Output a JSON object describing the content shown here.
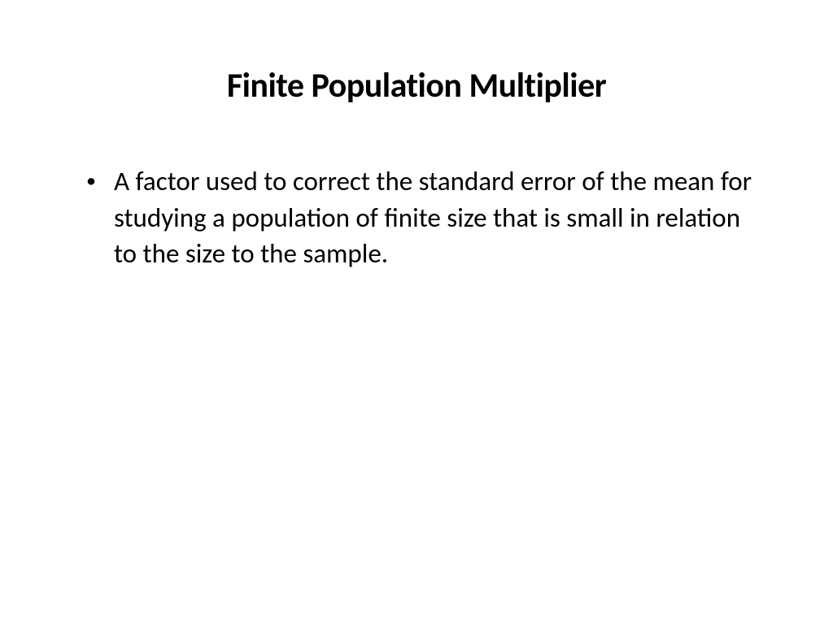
{
  "slide": {
    "title": "Finite Population Multiplier",
    "bullets": [
      {
        "text": "A factor used to correct the standard error of the mean for studying a population of finite size that is small in relation to the size to the sample."
      }
    ]
  },
  "styling": {
    "background_color": "#ffffff",
    "text_color": "#000000",
    "title_fontsize": 42,
    "title_weight": "bold",
    "body_fontsize": 33,
    "font_family": "Calibri"
  }
}
